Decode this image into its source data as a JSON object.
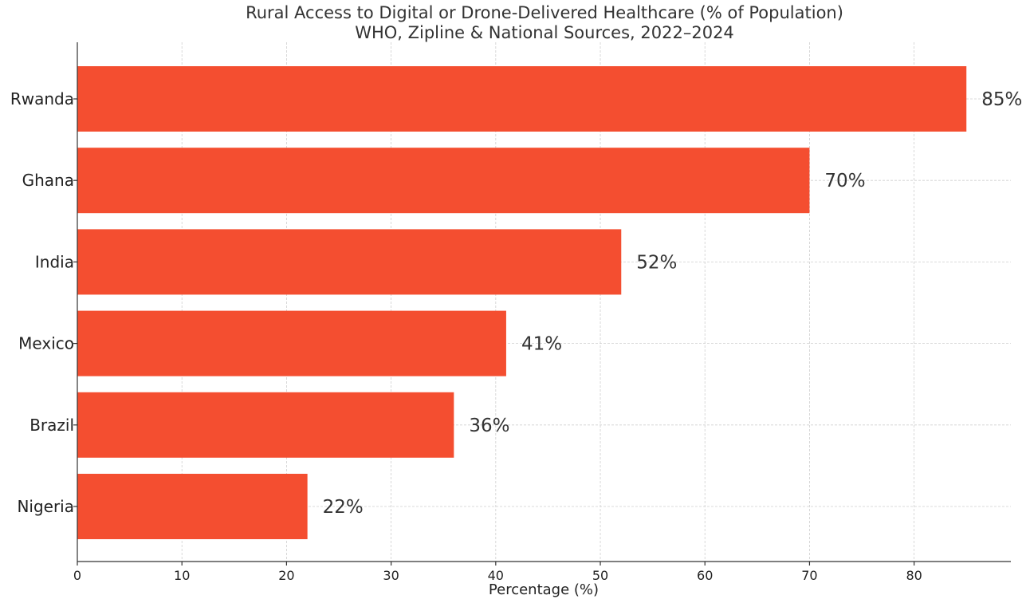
{
  "chart_data": {
    "type": "bar",
    "orientation": "horizontal",
    "title": "Rural Access to Digital or Drone-Delivered Healthcare (% of Population)",
    "subtitle": "WHO, Zipline & National Sources, 2022–2024",
    "xlabel": "Percentage (%)",
    "ylabel": "",
    "categories": [
      "Rwanda",
      "Ghana",
      "India",
      "Mexico",
      "Brazil",
      "Nigeria"
    ],
    "values": [
      85,
      70,
      52,
      41,
      36,
      22
    ],
    "value_labels": [
      "85%",
      "70%",
      "52%",
      "41%",
      "36%",
      "22%"
    ],
    "xlim": [
      0,
      89.25
    ],
    "xticks": [
      0,
      10,
      20,
      30,
      40,
      50,
      60,
      70,
      80
    ],
    "grid": true,
    "bar_color": "#f44e30"
  }
}
